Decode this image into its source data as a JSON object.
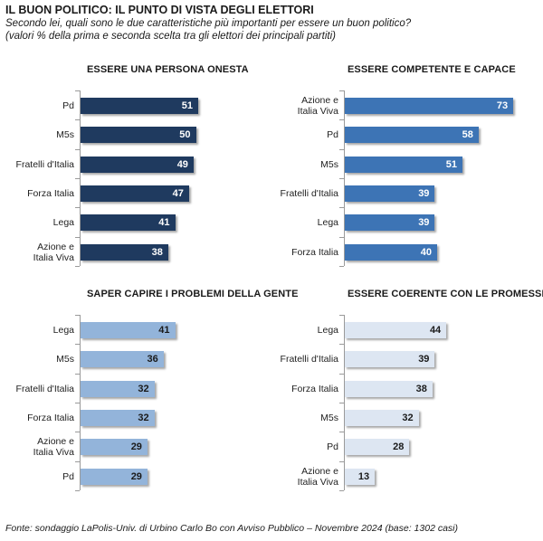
{
  "header": {
    "title": "IL BUON POLITICO: IL PUNTO DI VISTA DEGLI ELETTORI",
    "subtitle_1": "Secondo lei, quali sono le due caratteristiche più importanti per essere un buon politico?",
    "subtitle_2": "(valori % della prima e seconda scelta tra gli elettori dei principali partiti)"
  },
  "source": "Fonte: sondaggio LaPolis-Univ. di Urbino Carlo Bo con Avviso Pubblico – Novembre 2024 (base: 1302 casi)",
  "chart_data": [
    {
      "type": "bar",
      "orientation": "horizontal",
      "title": "ESSERE UNA PERSONA ONESTA",
      "categories": [
        "Pd",
        "M5s",
        "Fratelli d'Italia",
        "Forza Italia",
        "Lega",
        "Azione e Italia Viva"
      ],
      "values": [
        51,
        50,
        49,
        47,
        41,
        38
      ],
      "color": "#1f3a5f",
      "label_color": "#ffffff",
      "xlim": [
        0,
        75
      ]
    },
    {
      "type": "bar",
      "orientation": "horizontal",
      "title": "ESSERE COMPETENTE E CAPACE",
      "categories": [
        "Azione e Italia Viva",
        "Pd",
        "M5s",
        "Fratelli d'Italia",
        "Lega",
        "Forza Italia"
      ],
      "values": [
        73,
        58,
        51,
        39,
        39,
        40
      ],
      "color": "#3d74b5",
      "label_color": "#ffffff",
      "xlim": [
        0,
        75
      ]
    },
    {
      "type": "bar",
      "orientation": "horizontal",
      "title": "SAPER CAPIRE I PROBLEMI DELLA GENTE",
      "categories": [
        "Lega",
        "M5s",
        "Fratelli d'Italia",
        "Forza Italia",
        "Azione e Italia Viva",
        "Pd"
      ],
      "values": [
        41,
        36,
        32,
        32,
        29,
        29
      ],
      "color": "#93b4da",
      "label_color": "#1a1a1a",
      "xlim": [
        0,
        75
      ]
    },
    {
      "type": "bar",
      "orientation": "horizontal",
      "title": "ESSERE COERENTE CON LE PROMESSE",
      "categories": [
        "Lega",
        "Fratelli d'Italia",
        "Forza Italia",
        "M5s",
        "Pd",
        "Azione e Italia Viva"
      ],
      "values": [
        44,
        39,
        38,
        32,
        28,
        13
      ],
      "color": "#dde6f2",
      "label_color": "#1a1a1a",
      "xlim": [
        0,
        75
      ]
    }
  ]
}
